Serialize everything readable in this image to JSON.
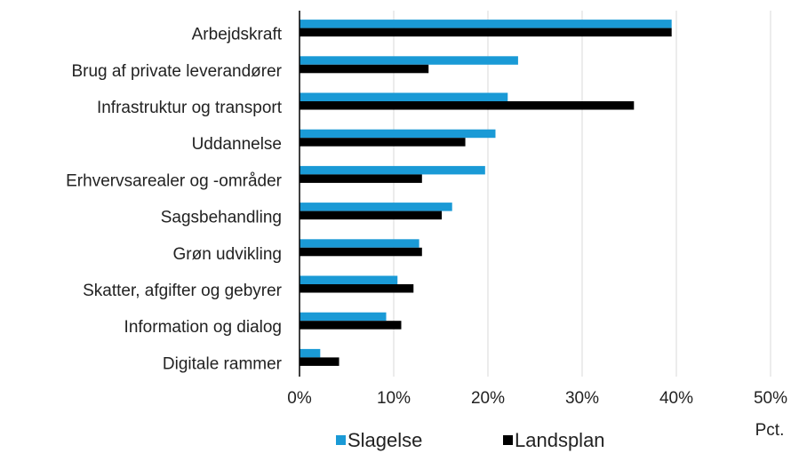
{
  "chart_data": {
    "type": "barh",
    "categories": [
      "Arbejdskraft",
      "Brug af private leverandører",
      "Infrastruktur og transport",
      "Uddannelse",
      "Erhvervsarealer og -områder",
      "Sagsbehandling",
      "Grøn udvikling",
      "Skatter, afgifter og gebyrer",
      "Information og dialog",
      "Digitale rammer"
    ],
    "series": [
      {
        "name": "Slagelse",
        "color": "#1a9ad6",
        "values": [
          39.5,
          23.2,
          22.1,
          20.8,
          19.7,
          16.2,
          12.7,
          10.4,
          9.2,
          2.2
        ]
      },
      {
        "name": "Landsplan",
        "color": "#000000",
        "values": [
          39.5,
          13.7,
          35.5,
          17.6,
          13.0,
          15.1,
          13.0,
          12.1,
          10.8,
          4.2
        ]
      }
    ],
    "xlabel": "Pct.",
    "xlim": [
      0,
      50
    ],
    "xticks": [
      {
        "value": 0,
        "label": "0%"
      },
      {
        "value": 10,
        "label": "10%"
      },
      {
        "value": 20,
        "label": "20%"
      },
      {
        "value": 30,
        "label": "30%"
      },
      {
        "value": 40,
        "label": "40%"
      },
      {
        "value": 50,
        "label": "50%"
      }
    ],
    "grid": true,
    "legend": "bottom"
  }
}
